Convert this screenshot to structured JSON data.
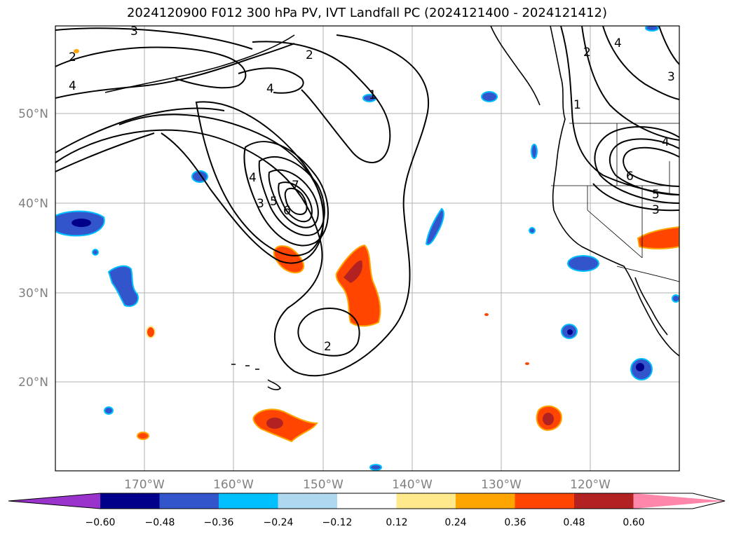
{
  "title": "2024120900 F012 300 hPa PV, IVT Landfall PC (2024121400 - 2024121412)",
  "lat_labels": [
    "50°N",
    "40°N",
    "30°N",
    "20°N"
  ],
  "lon_labels": [
    "170°W",
    "160°W",
    "150°W",
    "140°W",
    "130°W",
    "120°W"
  ],
  "contour_labels": [
    "3",
    "2",
    "4",
    "2",
    "4",
    "1",
    "2",
    "4",
    "3",
    "1",
    "4",
    "6",
    "5",
    "3",
    "4",
    "3",
    "5",
    "6",
    "7",
    "2"
  ],
  "colorbar": {
    "colors": [
      "#9933cc",
      "#00008b",
      "#3355cc",
      "#00bfff",
      "#add8f0",
      "#ffffff",
      "#ffe98a",
      "#ffa500",
      "#ff4500",
      "#b22222",
      "#ff88aa"
    ],
    "ticks": [
      "−0.60",
      "−0.48",
      "−0.36",
      "−0.24",
      "−0.12",
      "0.12",
      "0.24",
      "0.36",
      "0.48",
      "0.60"
    ]
  },
  "fill_colors": {
    "neg_light": "#add8f0",
    "neg_mid": "#00bfff",
    "neg_blue": "#3355cc",
    "neg_dark": "#00008b",
    "pos_light": "#ffe98a",
    "pos_mid": "#ffa500",
    "pos_red": "#ff4500",
    "pos_dark": "#b22222"
  }
}
